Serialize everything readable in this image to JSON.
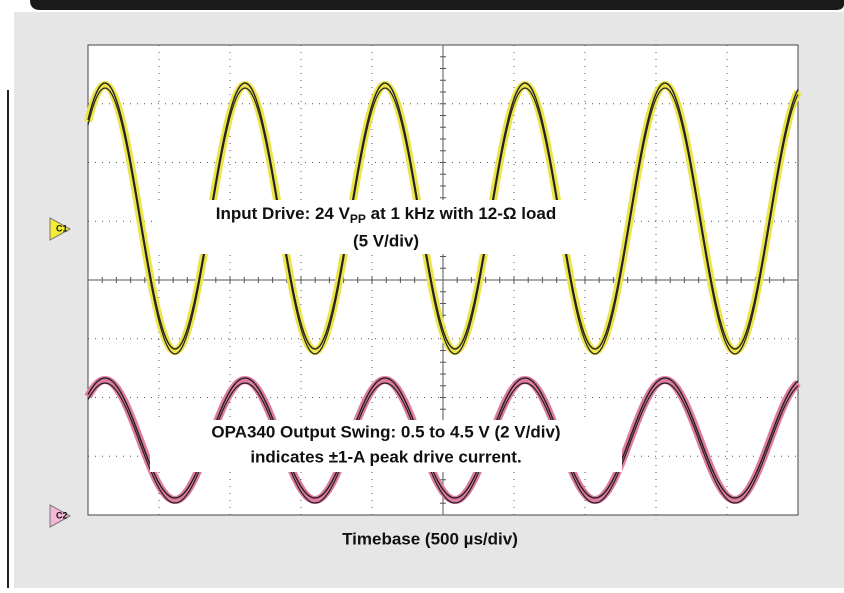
{
  "channels": [
    {
      "label": "C1"
    },
    {
      "label": "C2"
    }
  ],
  "annotations": {
    "input": {
      "text_before": "Input Drive: 24 V",
      "subscript": "PP",
      "text_after": " at 1 kHz with 12-Ω load",
      "scale": "(5 V/div)"
    },
    "output": {
      "line1": "OPA340 Output Swing: 0.5 to 4.5 V (2 V/div)",
      "line2": "indicates ±1-A peak drive current."
    }
  },
  "timebase": "Timebase (500 µs/div)"
}
